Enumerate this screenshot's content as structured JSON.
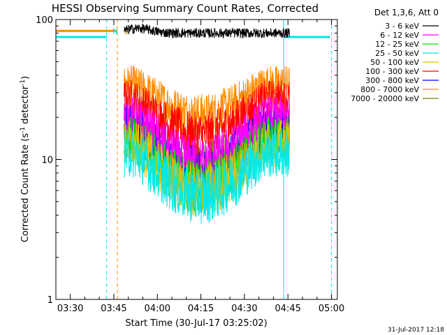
{
  "chart_data": {
    "type": "line",
    "title": "HESSI Observing Summary Count Rates, Corrected",
    "xlabel": "Start Time (30-Jul-17 03:25:02)",
    "ylabel_main": "Corrected Count Rate (s",
    "ylabel_sup1": "-1",
    "ylabel_mid": " detector",
    "ylabel_sup2": "-1",
    "ylabel_end": ")",
    "x_unit": "minutes after 03:25:02",
    "xlim": [
      0,
      97
    ],
    "ylim": [
      1,
      100
    ],
    "yscale": "log",
    "x_ticks": [
      {
        "label": "03:30",
        "value": 4.97
      },
      {
        "label": "03:45",
        "value": 19.97
      },
      {
        "label": "04:00",
        "value": 34.97
      },
      {
        "label": "04:15",
        "value": 49.97
      },
      {
        "label": "04:30",
        "value": 64.97
      },
      {
        "label": "04:45",
        "value": 79.97
      },
      {
        "label": "05:00",
        "value": 94.97
      }
    ],
    "y_ticks": [
      {
        "label": "1",
        "value": 1
      },
      {
        "label": "10",
        "value": 10
      },
      {
        "label": "100",
        "value": 100
      }
    ],
    "legend_title": "Det 1,3,6, Att 0",
    "legend_position": "right, outside plot",
    "series": [
      {
        "name": "3 - 6 keV",
        "color": "#000000"
      },
      {
        "name": "6 - 12 keV",
        "color": "#ff00ff"
      },
      {
        "name": "12 - 25 keV",
        "color": "#00e000"
      },
      {
        "name": "25 - 50 keV",
        "color": "#00e8e8"
      },
      {
        "name": "50 - 100 keV",
        "color": "#e8c000"
      },
      {
        "name": "100 - 300 keV",
        "color": "#ff0000"
      },
      {
        "name": "300 - 800 keV",
        "color": "#0000ff"
      },
      {
        "name": "800 - 7000 keV",
        "color": "#ff8c00"
      },
      {
        "name": "7000 - 20000 keV",
        "color": "#808000"
      }
    ],
    "annotations": [
      {
        "text": "N",
        "x": 19.5,
        "color": "#00e8e8"
      },
      {
        "text": "S",
        "x": 23.5,
        "color": "#ff8c00"
      }
    ],
    "vlines": [
      {
        "x": 17.5,
        "style": "dashed",
        "color": "#00e8e8"
      },
      {
        "x": 21.2,
        "style": "dashed",
        "color": "#ff8c00"
      },
      {
        "x": 78.5,
        "style": "solid",
        "color": "#00e8e8"
      },
      {
        "x": 95.0,
        "style": "dashed",
        "color": "#00e8e8"
      }
    ],
    "flags": [
      {
        "name": "night",
        "color": "#00e8e8",
        "value": 75,
        "segments": [
          [
            0,
            17.5
          ],
          [
            78.5,
            94.5
          ]
        ]
      },
      {
        "name": "saa",
        "color": "#ff8c00",
        "value": 83,
        "segments": [
          [
            0,
            21.2
          ]
        ]
      }
    ],
    "data_window": {
      "start": 23.5,
      "end": 80.5
    },
    "series_levels_edge": [
      80,
      20,
      14,
      11,
      13,
      27,
      17,
      35,
      16
    ],
    "series_levels_center": [
      80,
      9.5,
      6.5,
      5.5,
      6,
      15,
      8,
      21,
      9
    ],
    "grid": false
  },
  "timestamp": "31-Jul-2017 12:18"
}
